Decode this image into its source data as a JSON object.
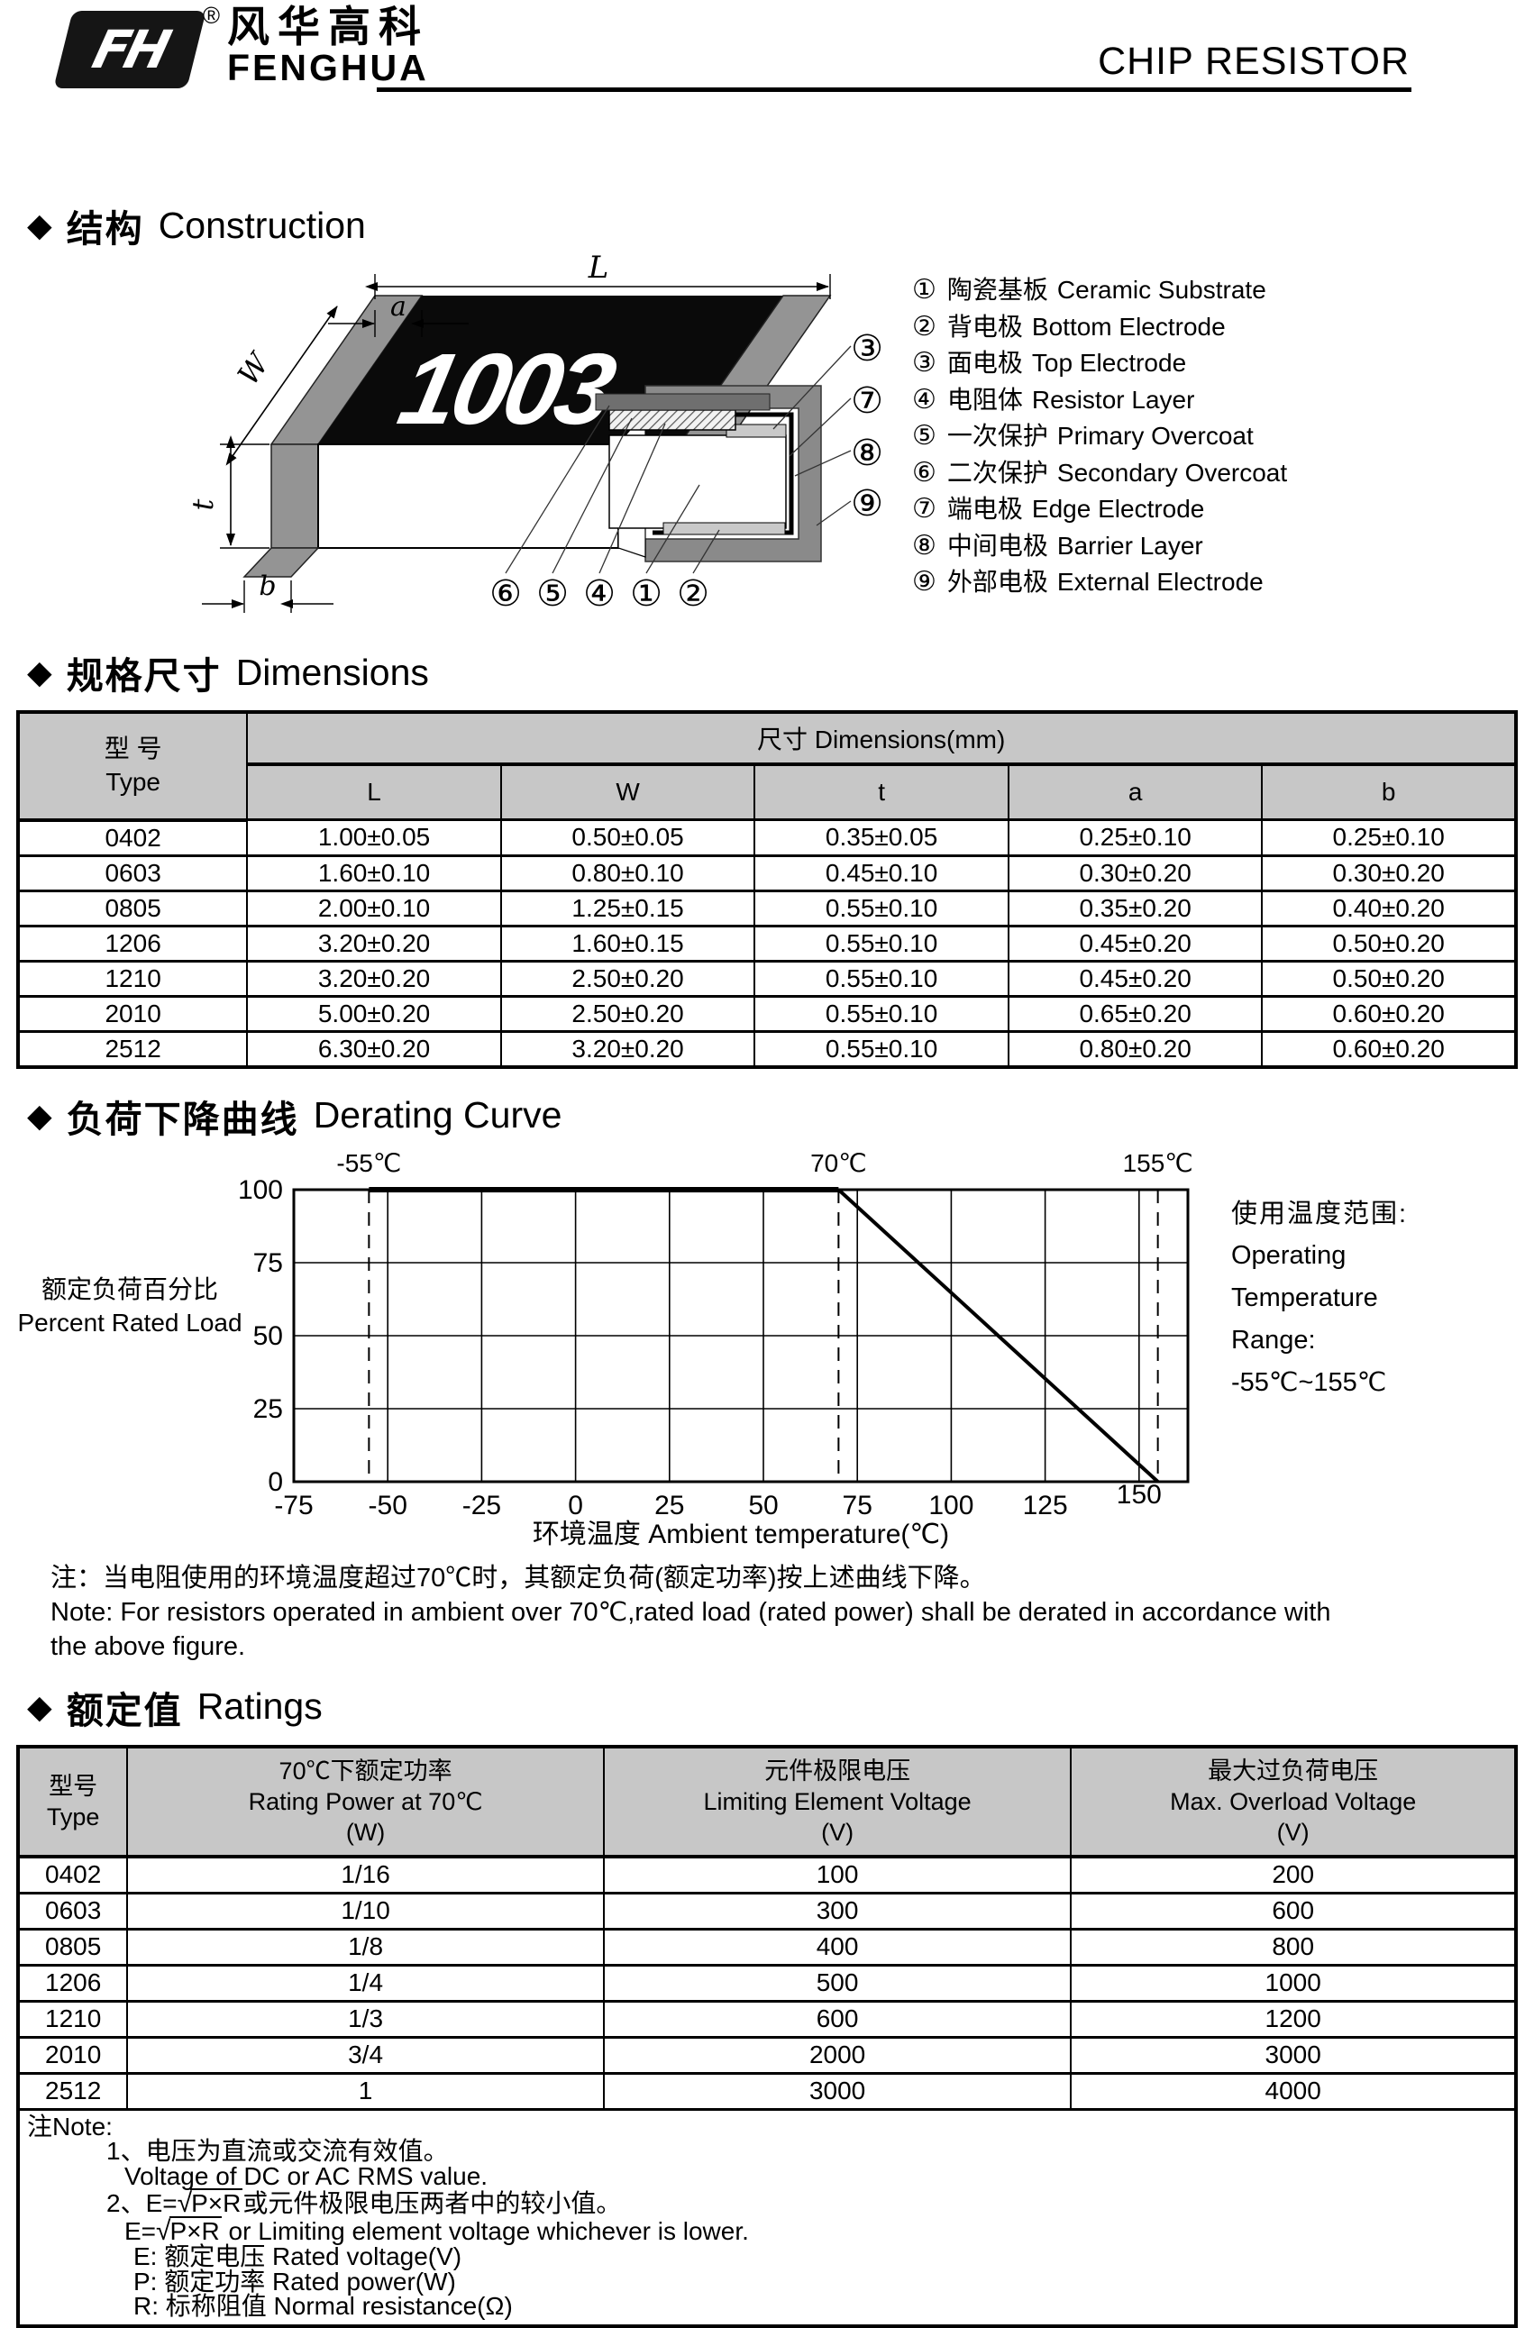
{
  "header": {
    "logo_mark": "FH",
    "logo_reg": "®",
    "logo_cn": "风华高科",
    "logo_en": "FENGHUA",
    "title": "CHIP RESISTOR"
  },
  "construction": {
    "bullet": "◆",
    "title_cn": "结构",
    "title_en": "Construction",
    "marking": "1003",
    "dim_L": "L",
    "dim_a": "a",
    "dim_W": "W",
    "dim_t": "t",
    "dim_b": "b",
    "callouts_right": [
      "③",
      "⑦",
      "⑧",
      "⑨"
    ],
    "callouts_bottom": [
      "⑥",
      "⑤",
      "④",
      "①",
      "②"
    ],
    "legend": [
      {
        "num": "①",
        "cn": "陶瓷基板",
        "en": "Ceramic Substrate"
      },
      {
        "num": "②",
        "cn": "背电极",
        "en": "Bottom Electrode"
      },
      {
        "num": "③",
        "cn": "面电极",
        "en": "Top Electrode"
      },
      {
        "num": "④",
        "cn": "电阻体",
        "en": "Resistor Layer"
      },
      {
        "num": "⑤",
        "cn": "一次保护",
        "en": "Primary Overcoat"
      },
      {
        "num": "⑥",
        "cn": "二次保护",
        "en": "Secondary Overcoat"
      },
      {
        "num": "⑦",
        "cn": "端电极",
        "en": "Edge Electrode"
      },
      {
        "num": "⑧",
        "cn": "中间电极",
        "en": "Barrier Layer"
      },
      {
        "num": "⑨",
        "cn": "外部电极",
        "en": "External Electrode"
      }
    ]
  },
  "dimensions": {
    "bullet": "◆",
    "title_cn": "规格尺寸",
    "title_en": "Dimensions",
    "header": {
      "type_cn": "型 号",
      "type_en": "Type",
      "dims_label": "尺寸 Dimensions(mm)",
      "cols": [
        "L",
        "W",
        "t",
        "a",
        "b"
      ]
    },
    "rows": [
      [
        "0402",
        "1.00±0.05",
        "0.50±0.05",
        "0.35±0.05",
        "0.25±0.10",
        "0.25±0.10"
      ],
      [
        "0603",
        "1.60±0.10",
        "0.80±0.10",
        "0.45±0.10",
        "0.30±0.20",
        "0.30±0.20"
      ],
      [
        "0805",
        "2.00±0.10",
        "1.25±0.15",
        "0.55±0.10",
        "0.35±0.20",
        "0.40±0.20"
      ],
      [
        "1206",
        "3.20±0.20",
        "1.60±0.15",
        "0.55±0.10",
        "0.45±0.20",
        "0.50±0.20"
      ],
      [
        "1210",
        "3.20±0.20",
        "2.50±0.20",
        "0.55±0.10",
        "0.45±0.20",
        "0.50±0.20"
      ],
      [
        "2010",
        "5.00±0.20",
        "2.50±0.20",
        "0.55±0.10",
        "0.65±0.20",
        "0.60±0.20"
      ],
      [
        "2512",
        "6.30±0.20",
        "3.20±0.20",
        "0.55±0.10",
        "0.80±0.20",
        "0.60±0.20"
      ]
    ]
  },
  "derating": {
    "bullet": "◆",
    "title_cn": "负荷下降曲线",
    "title_en": "Derating Curve",
    "ylabel_cn": "额定负荷百分比",
    "ylabel_en": "Percent Rated Load",
    "annotation": [
      "使用温度范围:",
      "Operating",
      "Temperature",
      "Range:",
      "-55℃~155℃"
    ],
    "note_cn": "注：当电阻使用的环境温度超过70℃时，其额定负荷(额定功率)按上述曲线下降。",
    "note_en1": "Note: For resistors operated in ambient over 70℃,rated  load (rated power) shall be derated in accordance with",
    "note_en2": "the above figure."
  },
  "chart_data": {
    "type": "line",
    "title": "负荷下降曲线 Derating Curve",
    "xlabel": "环境温度 Ambient temperature(℃)",
    "ylabel": "额定负荷百分比 Percent Rated Load",
    "xlim": [
      -75,
      163
    ],
    "ylim": [
      0,
      100
    ],
    "x_ticks": [
      -75,
      -50,
      -25,
      0,
      25,
      50,
      75,
      100,
      125,
      150
    ],
    "raised_ticks": [
      150
    ],
    "y_ticks": [
      0,
      25,
      50,
      75,
      100
    ],
    "grid": true,
    "legend_position": "none",
    "dashed_lines_x": [
      -55,
      70,
      155
    ],
    "top_labels": [
      {
        "x": -55,
        "text": "-55℃"
      },
      {
        "x": 70,
        "text": "70℃"
      },
      {
        "x": 155,
        "text": "155℃"
      }
    ],
    "series": [
      {
        "name": "derating-curve",
        "points": [
          [
            -55,
            100
          ],
          [
            70,
            100
          ],
          [
            155,
            0
          ]
        ]
      }
    ],
    "line_widths": [
      6,
      4
    ]
  },
  "ratings": {
    "bullet": "◆",
    "title_cn": "额定值",
    "title_en": "Ratings",
    "header": {
      "type": [
        "型号",
        "Type"
      ],
      "power": [
        "70℃下额定功率",
        "Rating Power  at 70℃",
        "(W)"
      ],
      "limiting": [
        "元件极限电压",
        "Limiting Element  Voltage",
        "(V)"
      ],
      "overload": [
        "最大过负荷电压",
        "Max. Overload Voltage",
        "(V)"
      ]
    },
    "rows": [
      [
        "0402",
        "1/16",
        "100",
        "200"
      ],
      [
        "0603",
        "1/10",
        "300",
        "600"
      ],
      [
        "0805",
        "1/8",
        "400",
        "800"
      ],
      [
        "1206",
        "1/4",
        "500",
        "1000"
      ],
      [
        "1210",
        "1/3",
        "600",
        "1200"
      ],
      [
        "2010",
        "3/4",
        "2000",
        "3000"
      ],
      [
        "2512",
        "1",
        "3000",
        "4000"
      ]
    ],
    "notes": {
      "label": "注Note:",
      "line1_cn": "1、电压为直流或交流有效值。",
      "line1_en": "Voltage of DC or AC RMS value.",
      "line2_pre_cn": "2、E=",
      "line2_sqrt_cn": "P×R",
      "line2_post_cn": "或元件极限电压两者中的较小值。",
      "line2_pre_en": "E=",
      "line2_sqrt_en": "P×R",
      "line2_post_en": "  or Limiting element voltage whichever is lower.",
      "def_e": "E: 额定电压 Rated voltage(V)",
      "def_p": "P: 额定功率 Rated power(W)",
      "def_r": "R: 标称阻值 Normal resistance(Ω)"
    }
  }
}
